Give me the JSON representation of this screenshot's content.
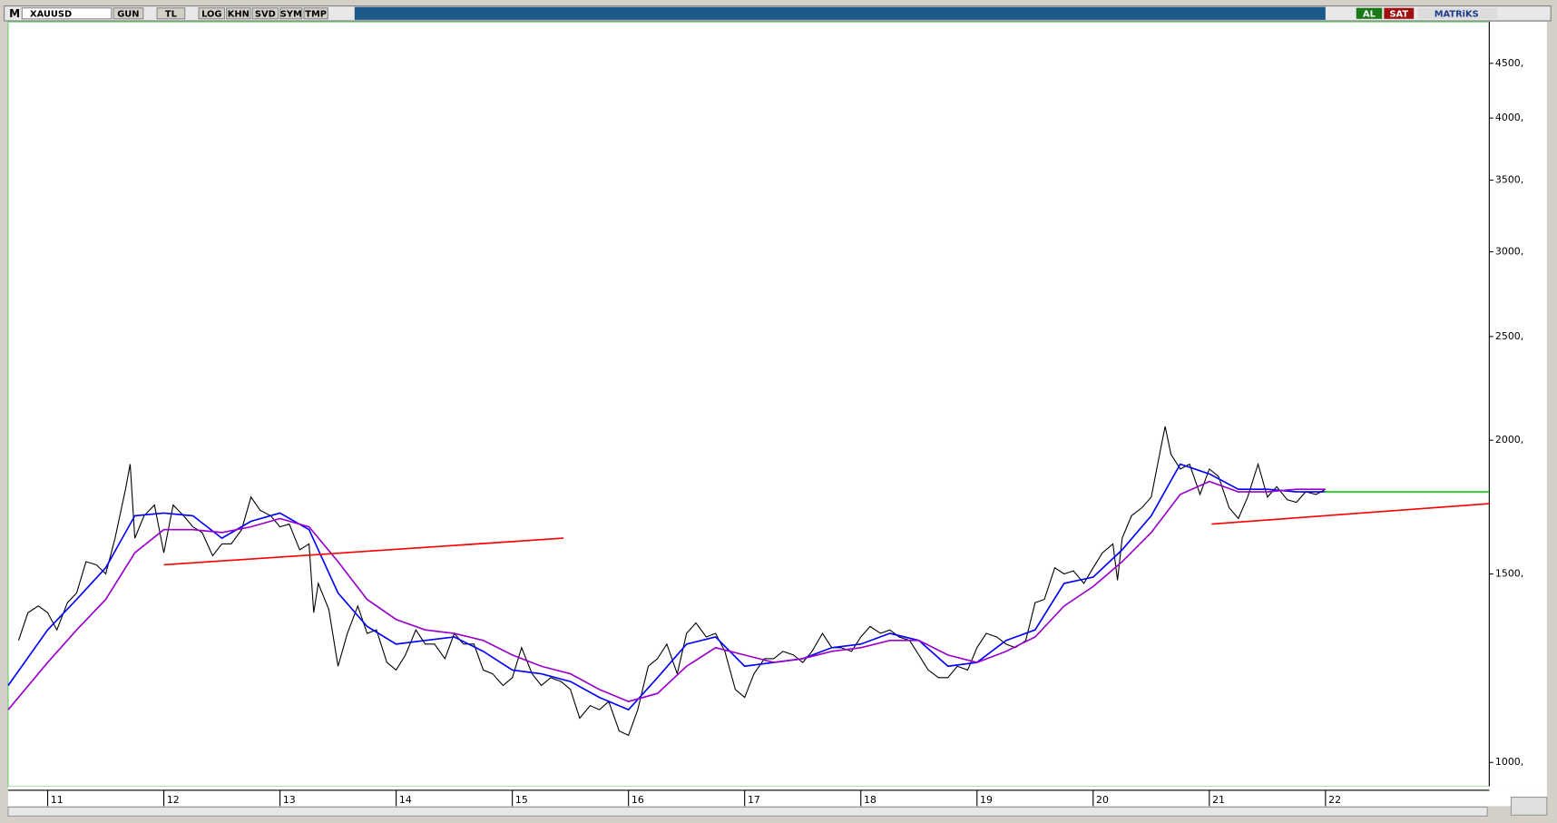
{
  "toolbar": {
    "logo": "M",
    "symbol": "XAUUSD",
    "buttons": [
      "GUN",
      "TL",
      "LOG",
      "KHN",
      "SVD",
      "SYM",
      "TMP"
    ],
    "buy": "AL",
    "sell": "SAT",
    "brand": "MATRiKS"
  },
  "chart_data": {
    "type": "line",
    "log_y": true,
    "xlim": [
      2010.66,
      2023.41
    ],
    "ylim": [
      950,
      4920
    ],
    "xticks": [
      {
        "value": 2011,
        "label": "11"
      },
      {
        "value": 2012,
        "label": "12"
      },
      {
        "value": 2013,
        "label": "13"
      },
      {
        "value": 2014,
        "label": "14"
      },
      {
        "value": 2015,
        "label": "15"
      },
      {
        "value": 2016,
        "label": "16"
      },
      {
        "value": 2017,
        "label": "17"
      },
      {
        "value": 2018,
        "label": "18"
      },
      {
        "value": 2019,
        "label": "19"
      },
      {
        "value": 2020,
        "label": "20"
      },
      {
        "value": 2021,
        "label": "21"
      },
      {
        "value": 2022,
        "label": "22"
      }
    ],
    "yticks": [
      {
        "value": 1000,
        "label": "1000,"
      },
      {
        "value": 1500,
        "label": "1500,"
      },
      {
        "value": 2000,
        "label": "2000,"
      },
      {
        "value": 2500,
        "label": "2500,"
      },
      {
        "value": 3000,
        "label": "3000,"
      },
      {
        "value": 3500,
        "label": "3500,"
      },
      {
        "value": 4000,
        "label": "4000,"
      },
      {
        "value": 4500,
        "label": "4500,"
      }
    ],
    "series": [
      {
        "color": "#000000",
        "x": [
          2010.75,
          2010.83,
          2010.92,
          2011.0,
          2011.08,
          2011.17,
          2011.25,
          2011.33,
          2011.42,
          2011.5,
          2011.58,
          2011.67,
          2011.71,
          2011.75,
          2011.83,
          2011.92,
          2012.0,
          2012.08,
          2012.17,
          2012.25,
          2012.33,
          2012.42,
          2012.5,
          2012.58,
          2012.67,
          2012.75,
          2012.83,
          2012.92,
          2013.0,
          2013.08,
          2013.17,
          2013.25,
          2013.29,
          2013.33,
          2013.42,
          2013.5,
          2013.58,
          2013.67,
          2013.75,
          2013.83,
          2013.92,
          2014.0,
          2014.08,
          2014.17,
          2014.25,
          2014.33,
          2014.42,
          2014.5,
          2014.58,
          2014.67,
          2014.75,
          2014.83,
          2014.92,
          2015.0,
          2015.08,
          2015.17,
          2015.25,
          2015.33,
          2015.42,
          2015.5,
          2015.58,
          2015.67,
          2015.75,
          2015.83,
          2015.92,
          2016.0,
          2016.08,
          2016.17,
          2016.25,
          2016.33,
          2016.42,
          2016.5,
          2016.58,
          2016.67,
          2016.75,
          2016.83,
          2016.92,
          2017.0,
          2017.08,
          2017.17,
          2017.25,
          2017.33,
          2017.42,
          2017.5,
          2017.58,
          2017.67,
          2017.75,
          2017.83,
          2017.92,
          2018.0,
          2018.08,
          2018.17,
          2018.25,
          2018.33,
          2018.42,
          2018.5,
          2018.58,
          2018.67,
          2018.75,
          2018.83,
          2018.92,
          2019.0,
          2019.08,
          2019.17,
          2019.25,
          2019.33,
          2019.42,
          2019.5,
          2019.58,
          2019.67,
          2019.75,
          2019.83,
          2019.92,
          2020.0,
          2020.08,
          2020.17,
          2020.21,
          2020.25,
          2020.33,
          2020.42,
          2020.5,
          2020.58,
          2020.62,
          2020.67,
          2020.75,
          2020.83,
          2020.92,
          2021.0,
          2021.08,
          2021.17,
          2021.25,
          2021.33,
          2021.42,
          2021.5,
          2021.58,
          2021.67,
          2021.75,
          2021.83,
          2021.92,
          2022.0
        ],
        "values": [
          1300,
          1380,
          1400,
          1380,
          1330,
          1410,
          1440,
          1540,
          1530,
          1500,
          1620,
          1800,
          1900,
          1620,
          1700,
          1740,
          1570,
          1740,
          1700,
          1660,
          1640,
          1560,
          1600,
          1600,
          1650,
          1770,
          1720,
          1700,
          1660,
          1670,
          1580,
          1600,
          1380,
          1470,
          1390,
          1230,
          1320,
          1400,
          1320,
          1330,
          1240,
          1220,
          1260,
          1330,
          1290,
          1290,
          1250,
          1320,
          1290,
          1290,
          1220,
          1210,
          1180,
          1200,
          1280,
          1210,
          1180,
          1200,
          1190,
          1170,
          1100,
          1130,
          1120,
          1140,
          1070,
          1060,
          1120,
          1230,
          1250,
          1290,
          1210,
          1320,
          1350,
          1310,
          1320,
          1270,
          1170,
          1150,
          1210,
          1250,
          1250,
          1270,
          1260,
          1240,
          1270,
          1320,
          1280,
          1280,
          1270,
          1310,
          1340,
          1320,
          1330,
          1310,
          1300,
          1260,
          1220,
          1200,
          1200,
          1230,
          1220,
          1280,
          1320,
          1310,
          1290,
          1280,
          1300,
          1410,
          1420,
          1520,
          1500,
          1510,
          1470,
          1520,
          1570,
          1600,
          1480,
          1620,
          1700,
          1730,
          1770,
          1960,
          2060,
          1940,
          1880,
          1900,
          1780,
          1880,
          1850,
          1730,
          1690,
          1770,
          1900,
          1770,
          1810,
          1760,
          1750,
          1790,
          1780,
          1800
        ]
      },
      {
        "color": "#0000ff",
        "x": [
          2010.66,
          2011.0,
          2011.25,
          2011.5,
          2011.75,
          2012.0,
          2012.25,
          2012.5,
          2012.75,
          2013.0,
          2013.25,
          2013.5,
          2013.75,
          2014.0,
          2014.25,
          2014.5,
          2014.75,
          2015.0,
          2015.25,
          2015.5,
          2015.75,
          2016.0,
          2016.25,
          2016.5,
          2016.75,
          2017.0,
          2017.25,
          2017.5,
          2017.75,
          2018.0,
          2018.25,
          2018.5,
          2018.75,
          2019.0,
          2019.25,
          2019.5,
          2019.75,
          2020.0,
          2020.25,
          2020.5,
          2020.75,
          2021.0,
          2021.25,
          2021.5,
          2021.75,
          2022.0
        ],
        "values": [
          1180,
          1330,
          1420,
          1520,
          1700,
          1710,
          1700,
          1620,
          1680,
          1710,
          1650,
          1440,
          1340,
          1290,
          1300,
          1310,
          1270,
          1220,
          1210,
          1190,
          1150,
          1120,
          1200,
          1290,
          1310,
          1230,
          1240,
          1250,
          1280,
          1290,
          1320,
          1300,
          1230,
          1240,
          1300,
          1330,
          1470,
          1490,
          1580,
          1700,
          1900,
          1860,
          1800,
          1800,
          1790,
          1790
        ]
      },
      {
        "color": "#9900cc",
        "x": [
          2010.66,
          2011.0,
          2011.25,
          2011.5,
          2011.75,
          2012.0,
          2012.25,
          2012.5,
          2012.75,
          2013.0,
          2013.25,
          2013.5,
          2013.75,
          2014.0,
          2014.25,
          2014.5,
          2014.75,
          2015.0,
          2015.25,
          2015.5,
          2015.75,
          2016.0,
          2016.25,
          2016.5,
          2016.75,
          2017.0,
          2017.25,
          2017.5,
          2017.75,
          2018.0,
          2018.25,
          2018.5,
          2018.75,
          2019.0,
          2019.25,
          2019.5,
          2019.75,
          2020.0,
          2020.25,
          2020.5,
          2020.75,
          2021.0,
          2021.25,
          2021.5,
          2021.75,
          2022.0
        ],
        "values": [
          1120,
          1240,
          1330,
          1420,
          1570,
          1650,
          1650,
          1640,
          1660,
          1690,
          1660,
          1540,
          1420,
          1360,
          1330,
          1320,
          1300,
          1260,
          1230,
          1210,
          1170,
          1140,
          1160,
          1230,
          1280,
          1260,
          1240,
          1250,
          1270,
          1280,
          1300,
          1300,
          1260,
          1240,
          1270,
          1310,
          1400,
          1460,
          1540,
          1640,
          1780,
          1830,
          1790,
          1790,
          1800,
          1800
        ]
      },
      {
        "color": "#ff0000",
        "x": [
          2012.0,
          2015.44
        ],
        "values": [
          1530,
          1620
        ]
      },
      {
        "color": "#ff0000",
        "x": [
          2021.02,
          2023.41
        ],
        "values": [
          1670,
          1745
        ]
      },
      {
        "color": "#00cc00",
        "x": [
          2021.99,
          2023.41
        ],
        "values": [
          1790,
          1790
        ]
      }
    ]
  }
}
